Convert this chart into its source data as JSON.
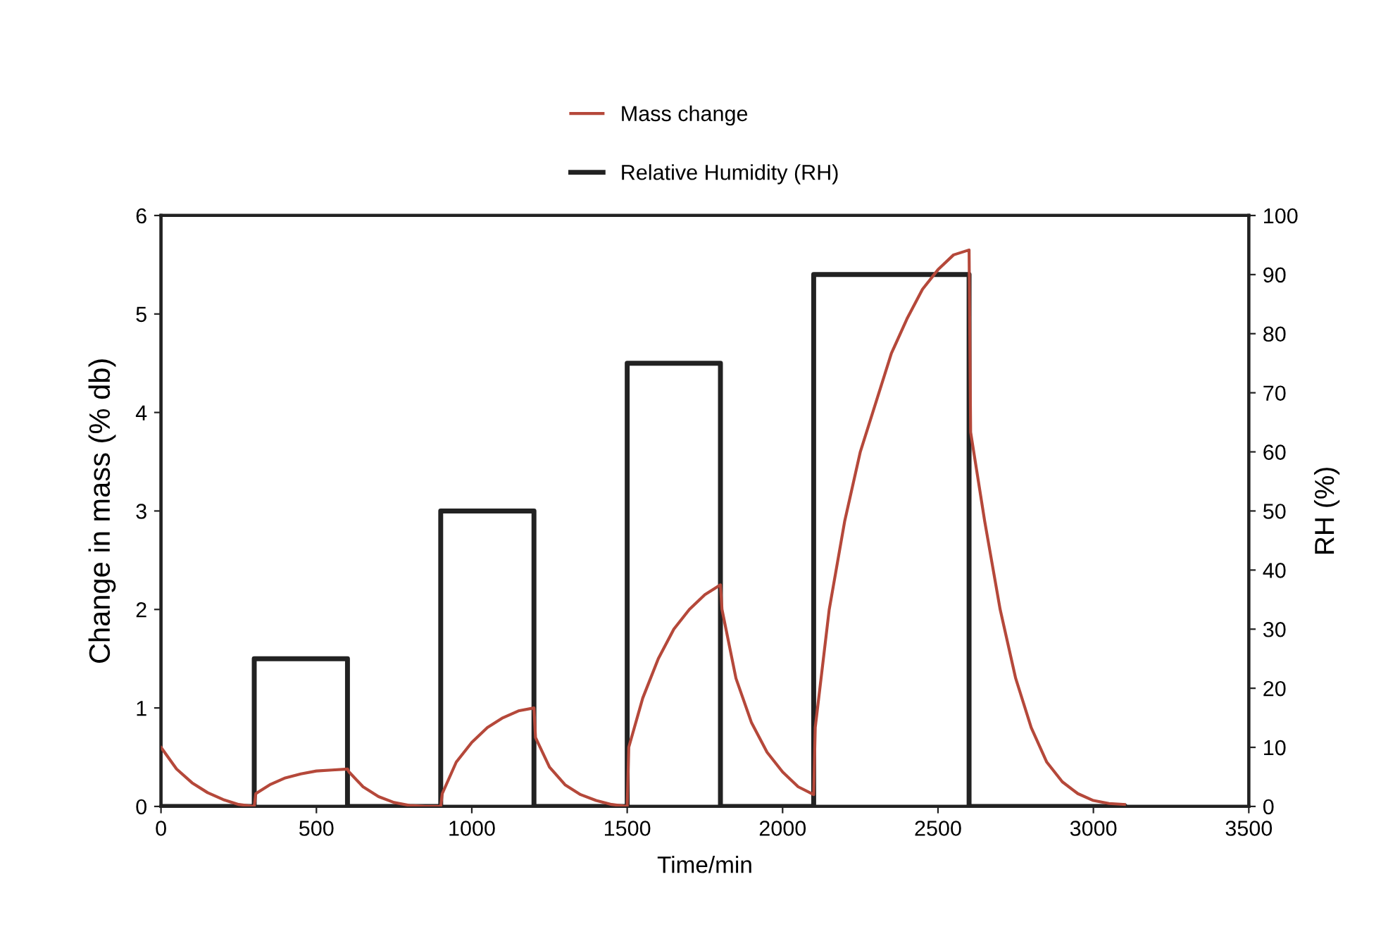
{
  "chart_data": {
    "type": "line",
    "xlabel": "Time/min",
    "ylabel": "Change in mass (% db)",
    "y2label": "RH (%)",
    "xlim": [
      0,
      3500
    ],
    "xticks": [
      0,
      500,
      1000,
      1500,
      2000,
      2500,
      3000,
      3500
    ],
    "ylim": [
      0,
      6
    ],
    "yticks": [
      0,
      1,
      2,
      3,
      4,
      5,
      6
    ],
    "y2lim": [
      0,
      100
    ],
    "y2ticks": [
      0,
      10,
      20,
      30,
      40,
      50,
      60,
      70,
      80,
      90,
      100
    ],
    "grid": false,
    "legend": "top",
    "marker": "none",
    "series": [
      {
        "name": "Mass change",
        "color": "#b5483a",
        "axis": "y",
        "line_style": "solid",
        "x": [
          0,
          50,
          100,
          150,
          200,
          250,
          300,
          305,
          350,
          400,
          450,
          500,
          550,
          600,
          605,
          650,
          700,
          750,
          800,
          850,
          900,
          905,
          950,
          1000,
          1050,
          1100,
          1150,
          1200,
          1205,
          1250,
          1300,
          1350,
          1400,
          1450,
          1500,
          1505,
          1550,
          1600,
          1650,
          1700,
          1750,
          1800,
          1805,
          1850,
          1900,
          1950,
          2000,
          2050,
          2100,
          2105,
          2150,
          2200,
          2250,
          2300,
          2350,
          2400,
          2450,
          2500,
          2550,
          2600,
          2605,
          2650,
          2700,
          2750,
          2800,
          2850,
          2900,
          2950,
          3000,
          3050,
          3100
        ],
        "values": [
          0.6,
          0.38,
          0.24,
          0.14,
          0.07,
          0.02,
          0,
          0.13,
          0.22,
          0.29,
          0.33,
          0.36,
          0.37,
          0.38,
          0.35,
          0.2,
          0.1,
          0.04,
          0.01,
          0,
          0,
          0.13,
          0.45,
          0.65,
          0.8,
          0.9,
          0.97,
          1.0,
          0.7,
          0.4,
          0.22,
          0.12,
          0.06,
          0.02,
          0,
          0.6,
          1.1,
          1.5,
          1.8,
          2.0,
          2.15,
          2.25,
          2.0,
          1.3,
          0.85,
          0.55,
          0.35,
          0.2,
          0.12,
          0.8,
          2.0,
          2.9,
          3.6,
          4.1,
          4.6,
          4.95,
          5.25,
          5.45,
          5.6,
          5.65,
          3.8,
          2.9,
          2.0,
          1.3,
          0.8,
          0.45,
          0.25,
          0.13,
          0.06,
          0.03,
          0.02
        ]
      },
      {
        "name": "Relative Humidity (RH)",
        "color": "#222222",
        "axis": "y2",
        "type": "step",
        "line_style": "solid",
        "x": [
          0,
          300,
          600,
          900,
          1200,
          1500,
          1800,
          2100,
          2600,
          3100
        ],
        "values": [
          0,
          25,
          0,
          50,
          0,
          75,
          0,
          90,
          0,
          0
        ]
      }
    ]
  }
}
